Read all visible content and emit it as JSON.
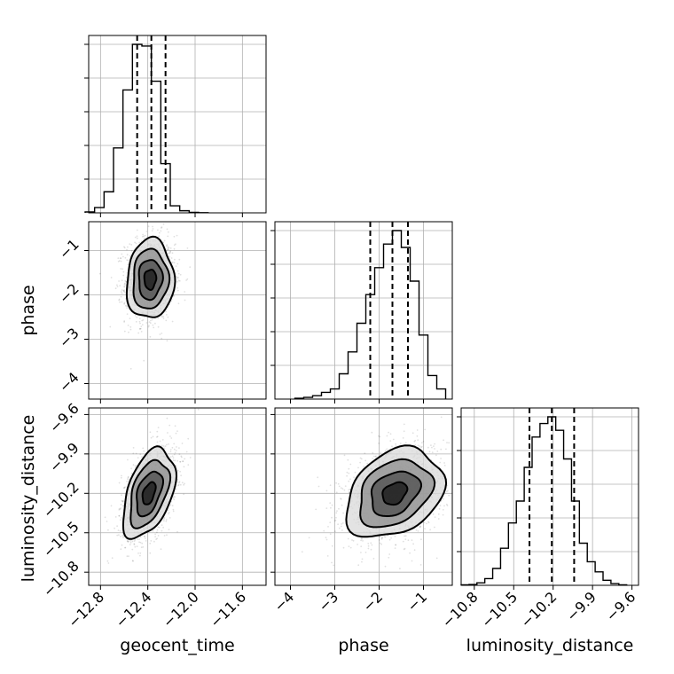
{
  "chart_data": {
    "type": "corner",
    "parameters": [
      {
        "key": "geocent_time",
        "label": "geocent_time",
        "range": [
          -12.9,
          -11.4
        ],
        "ticks": [
          -12.8,
          -12.4,
          -12.0,
          -11.6
        ],
        "tick_labels": [
          "−12.8",
          "−12.4",
          "−12.0",
          "−11.6"
        ]
      },
      {
        "key": "phase",
        "label": "phase",
        "range": [
          -4.35,
          -0.35
        ],
        "ticks": [
          -4,
          -3,
          -2,
          -1
        ],
        "tick_labels": [
          "−4",
          "−3",
          "−2",
          "−1"
        ]
      },
      {
        "key": "luminosity_distance",
        "label": "luminosity_distance",
        "range": [
          -10.9,
          -9.55
        ],
        "ticks": [
          -10.8,
          -10.5,
          -10.2,
          -9.9,
          -9.6
        ],
        "tick_labels": [
          "−10.8",
          "−10.5",
          "−10.2",
          "−9.9",
          "−9.6"
        ]
      }
    ],
    "histograms": [
      {
        "param": "geocent_time",
        "bin_edges": [
          -12.93,
          -12.85,
          -12.77,
          -12.69,
          -12.61,
          -12.53,
          -12.45,
          -12.37,
          -12.29,
          -12.21,
          -12.13,
          -12.05,
          -11.97,
          -11.89
        ],
        "counts": [
          0.5,
          3,
          12,
          37,
          70,
          96,
          95,
          75,
          28,
          4,
          1.2,
          0.3,
          0.1
        ],
        "quantiles": [
          -12.49,
          -12.37,
          -12.25
        ]
      },
      {
        "param": "phase",
        "bin_edges": [
          -3.9,
          -3.7,
          -3.5,
          -3.3,
          -3.1,
          -2.9,
          -2.7,
          -2.5,
          -2.3,
          -2.1,
          -1.9,
          -1.7,
          -1.5,
          -1.3,
          -1.1,
          -0.9,
          -0.7,
          -0.5
        ],
        "counts": [
          0.5,
          1,
          2,
          4,
          6,
          15,
          28,
          45,
          62,
          78,
          92,
          100,
          90,
          70,
          38,
          14,
          6
        ],
        "quantiles": [
          -2.2,
          -1.7,
          -1.35
        ]
      },
      {
        "param": "luminosity_distance",
        "bin_edges": [
          -10.9,
          -10.84,
          -10.78,
          -10.72,
          -10.66,
          -10.6,
          -10.54,
          -10.48,
          -10.42,
          -10.36,
          -10.3,
          -10.24,
          -10.18,
          -10.12,
          -10.06,
          -10.0,
          -9.94,
          -9.88,
          -9.82,
          -9.76,
          -9.7,
          -9.64
        ],
        "counts": [
          0.3,
          0.5,
          1.5,
          4,
          10,
          22,
          37,
          50,
          70,
          88,
          96,
          100,
          92,
          75,
          50,
          25,
          14,
          8,
          3,
          1,
          0.3
        ],
        "quantiles": [
          -10.38,
          -10.21,
          -10.04
        ]
      }
    ],
    "pairs": [
      {
        "x": "geocent_time",
        "y": "phase",
        "center": [
          -12.38,
          -1.65
        ],
        "sigma": [
          0.1,
          0.45
        ],
        "rho": 0.05,
        "contour_levels_sigma": [
          0.5,
          1.0,
          1.5,
          2.0
        ]
      },
      {
        "x": "geocent_time",
        "y": "luminosity_distance",
        "center": [
          -12.39,
          -10.2
        ],
        "sigma": [
          0.11,
          0.17
        ],
        "rho": 0.45,
        "contour_levels_sigma": [
          0.5,
          1.0,
          1.5,
          2.0
        ]
      },
      {
        "x": "phase",
        "y": "luminosity_distance",
        "center": [
          -1.65,
          -10.2
        ],
        "sigma": [
          0.55,
          0.17
        ],
        "rho": 0.3,
        "contour_levels_sigma": [
          0.5,
          1.0,
          1.5,
          2.0
        ]
      }
    ],
    "grid": true
  }
}
